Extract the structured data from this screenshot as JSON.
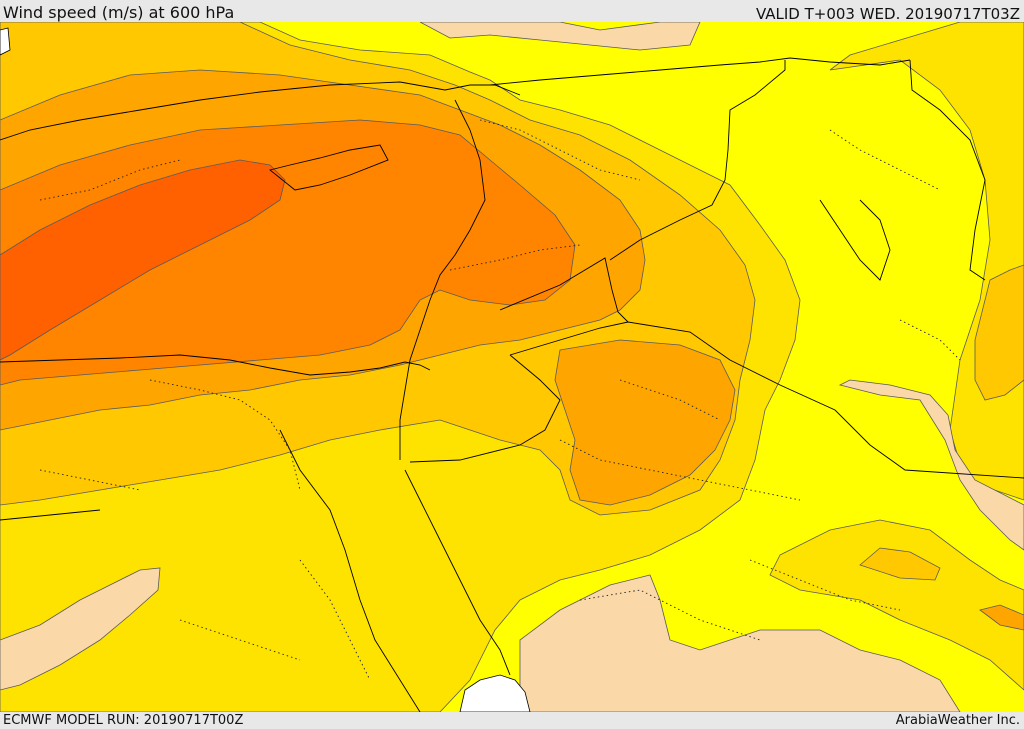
{
  "header": {
    "title": "Wind speed (m/s) at 600 hPa",
    "valid": "VALID T+003 WED. 20190717T03Z"
  },
  "footer": {
    "model_run": "ECMWF MODEL RUN: 20190717T00Z",
    "credit": "ArabiaWeather Inc."
  },
  "map": {
    "field": "wind speed 600 hPa",
    "shading_colors": {
      "band_lowest": "#fbd8a8",
      "band_1": "#ffff00",
      "band_2": "#ffe300",
      "band_3": "#ffc800",
      "band_4": "#ffa500",
      "band_5": "#ff8400",
      "band_6": "#ff6000",
      "sea_unshaded": "#ffffff"
    },
    "contour_line_color": "#5a5a5a",
    "border_line_color": "#000000",
    "coast_line_color": "#000000"
  }
}
